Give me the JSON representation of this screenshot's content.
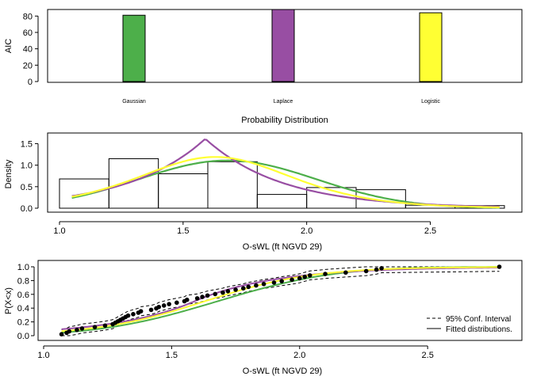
{
  "chart_data": [
    {
      "type": "bar",
      "ylabel": "AIC",
      "xlabel": "Probability Distribution",
      "ylim": [
        0,
        88
      ],
      "yticks": [
        0,
        20,
        40,
        60,
        80
      ],
      "categories": [
        "Gaussian",
        "Laplace",
        "Logistic"
      ],
      "values": [
        81,
        88,
        84
      ],
      "colors": [
        "#4daf4a",
        "#984ea3",
        "#ffff33"
      ]
    },
    {
      "type": "bar",
      "subtype": "histogram-with-density",
      "ylabel": "Density",
      "xlabel": "O-sWL (ft NGVD 29)",
      "xlim": [
        1.0,
        2.8
      ],
      "ylim": [
        0,
        1.6
      ],
      "xticks": [
        "1.0",
        "1.5",
        "2.0",
        "2.5"
      ],
      "yticks": [
        "0.0",
        "0.5",
        "1.0",
        "1.5"
      ],
      "bins": [
        {
          "x0": 1.0,
          "x1": 1.2,
          "density": 0.68
        },
        {
          "x0": 1.2,
          "x1": 1.4,
          "density": 1.15
        },
        {
          "x0": 1.4,
          "x1": 1.6,
          "density": 0.8
        },
        {
          "x0": 1.6,
          "x1": 1.8,
          "density": 1.08
        },
        {
          "x0": 1.8,
          "x1": 2.0,
          "density": 0.32
        },
        {
          "x0": 2.0,
          "x1": 2.2,
          "density": 0.48
        },
        {
          "x0": 2.2,
          "x1": 2.4,
          "density": 0.43
        },
        {
          "x0": 2.4,
          "x1": 2.6,
          "density": 0.07
        },
        {
          "x0": 2.6,
          "x1": 2.8,
          "density": 0.06
        }
      ],
      "series": [
        {
          "distribution": "Gaussian",
          "color": "#4daf4a",
          "mean": 1.68,
          "sd": 0.36
        },
        {
          "distribution": "Laplace",
          "color": "#984ea3",
          "location": 1.59,
          "scale": 0.31
        },
        {
          "distribution": "Logistic",
          "color": "#ffff33",
          "location": 1.63,
          "scale": 0.21
        }
      ],
      "curve_range": [
        1.05,
        2.78
      ]
    },
    {
      "type": "line",
      "subtype": "ecdf-with-confidence",
      "ylabel": "P(X<x)",
      "xlabel": "O-sWL (ft NGVD 29)",
      "xlim": [
        1.0,
        2.8
      ],
      "ylim": [
        0,
        1.0
      ],
      "xticks": [
        "1.0",
        "1.5",
        "2.0",
        "2.5"
      ],
      "yticks": [
        "0.0",
        "0.2",
        "0.4",
        "0.6",
        "0.8",
        "1.0"
      ],
      "legend": {
        "position": "bottom-right",
        "entries": [
          {
            "label": "95% Conf. Interval",
            "style": "dashed"
          },
          {
            "label": "Fitted distributions.",
            "style": "solid"
          }
        ]
      },
      "points_x": [
        1.07,
        1.09,
        1.1,
        1.13,
        1.15,
        1.2,
        1.24,
        1.27,
        1.28,
        1.29,
        1.3,
        1.31,
        1.32,
        1.33,
        1.35,
        1.37,
        1.38,
        1.42,
        1.44,
        1.45,
        1.47,
        1.49,
        1.52,
        1.55,
        1.56,
        1.6,
        1.62,
        1.64,
        1.67,
        1.7,
        1.72,
        1.75,
        1.78,
        1.8,
        1.83,
        1.86,
        1.9,
        1.93,
        1.97,
        2.0,
        2.02,
        2.04,
        2.1,
        2.18,
        2.26,
        2.3,
        2.32,
        2.78
      ],
      "conf_band_halfwidth": 0.065,
      "series": [
        {
          "distribution": "Gaussian",
          "color": "#4daf4a",
          "mean": 1.68,
          "sd": 0.36
        },
        {
          "distribution": "Laplace",
          "color": "#984ea3",
          "location": 1.59,
          "scale": 0.31
        },
        {
          "distribution": "Logistic",
          "color": "#ffff33",
          "location": 1.63,
          "scale": 0.21
        }
      ]
    }
  ]
}
